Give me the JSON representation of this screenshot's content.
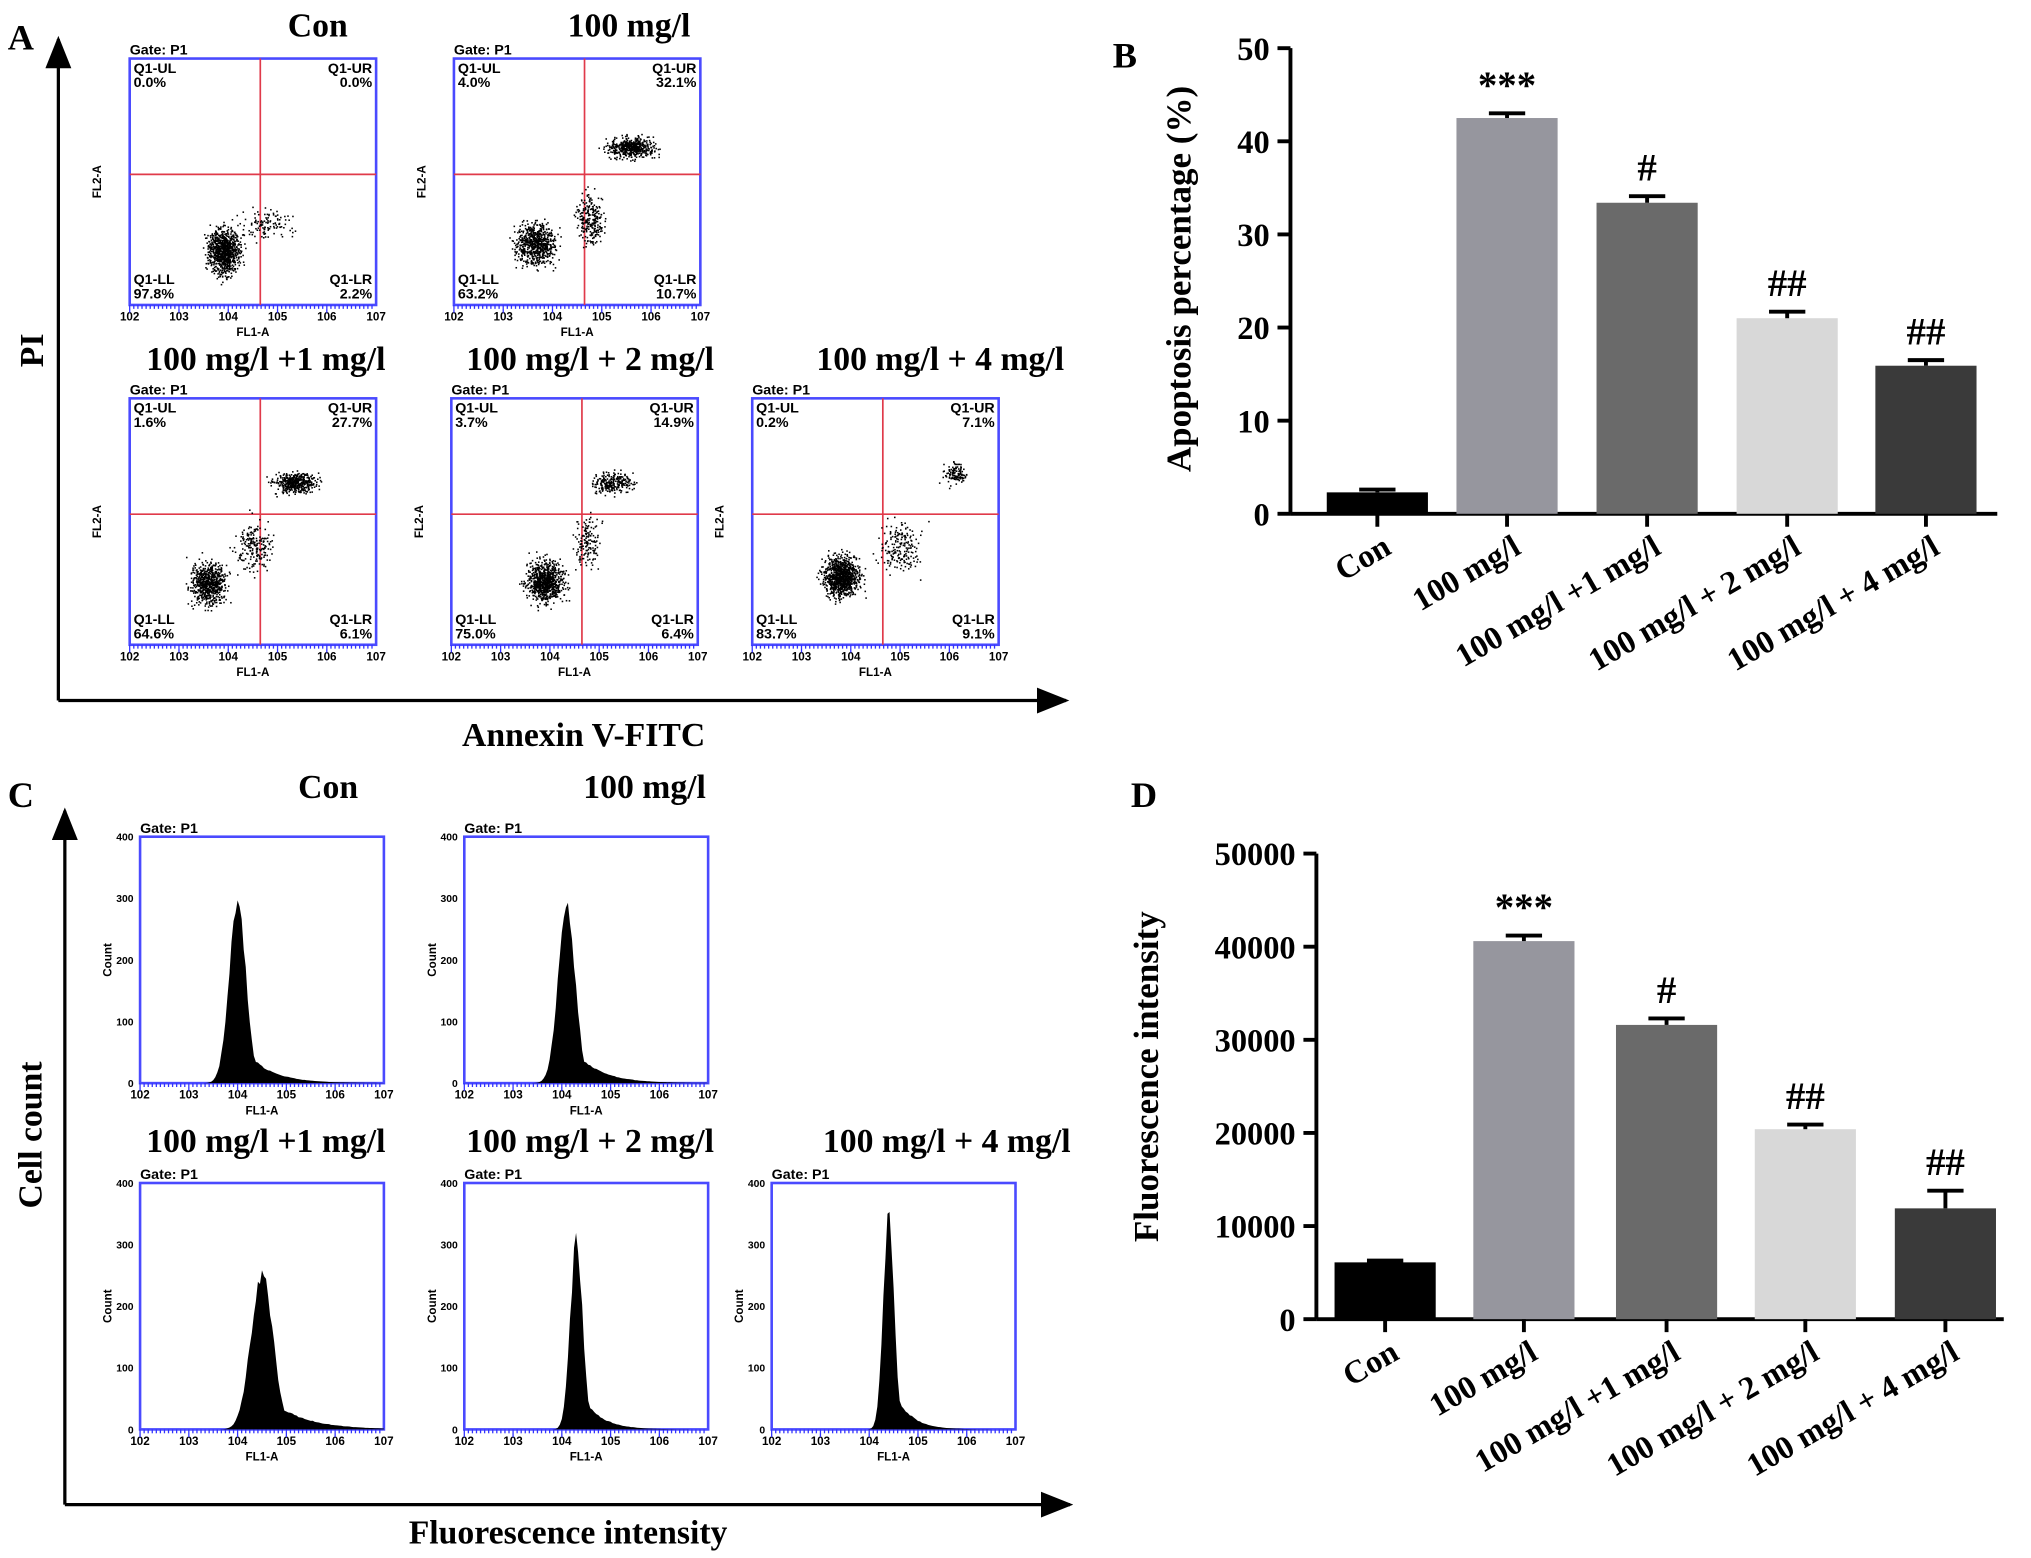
{
  "panels": {
    "A": "A",
    "B": "B",
    "C": "C",
    "D": "D"
  },
  "chart_data": [
    {
      "type": "scatter",
      "panel": "A",
      "ylabel": "PI",
      "xlabel": "Annexin  V-FITC",
      "gate": "Gate: P1",
      "x_channel": "FL1-A",
      "y_channel": "FL2-A",
      "quadrant_names": [
        "Q1-UL",
        "Q1-UR",
        "Q1-LL",
        "Q1-LR"
      ],
      "plots": [
        {
          "title": "Con",
          "UL": "0.0%",
          "UR": "0.0%",
          "LL": "97.8%",
          "LR": "2.2%"
        },
        {
          "title": "100 mg/l",
          "UL": "4.0%",
          "UR": "32.1%",
          "LL": "63.2%",
          "LR": "10.7%"
        },
        {
          "title": "100 mg/l +1 mg/l",
          "UL": "1.6%",
          "UR": "27.7%",
          "LL": "64.6%",
          "LR": "6.1%"
        },
        {
          "title": "100 mg/l + 2 mg/l",
          "UL": "3.7%",
          "UR": "14.9%",
          "LL": "75.0%",
          "LR": "6.4%"
        },
        {
          "title": "100 mg/l + 4 mg/l",
          "UL": "0.2%",
          "UR": "7.1%",
          "LL": "83.7%",
          "LR": "9.1%"
        }
      ]
    },
    {
      "type": "bar",
      "panel": "B",
      "ylabel": "Apoptosis percentage (%)",
      "ylim": [
        0,
        50
      ],
      "yticks": [
        "0",
        "10",
        "20",
        "30",
        "40",
        "50"
      ],
      "categories": [
        "Con",
        "100 mg/l",
        "100 mg/l +1 mg/l",
        "100 mg/l + 2 mg/l",
        "100 mg/l + 4 mg/l"
      ],
      "values": [
        2.3,
        42.5,
        33.4,
        21.0,
        15.9
      ],
      "errors": [
        0.3,
        0.5,
        0.7,
        0.7,
        0.6
      ],
      "annotations": [
        "",
        "***",
        "#",
        "##",
        "##"
      ],
      "colors": [
        "#000000",
        "#96969e",
        "#6a6a6a",
        "#d8d8d8",
        "#3a3a3a"
      ]
    },
    {
      "type": "area",
      "panel": "C",
      "ylabel": "Cell count",
      "xlabel": "Fluorescence intensity",
      "gate": "Gate: P1",
      "x_channel": "FL1-A",
      "y_channel": "Count",
      "yticks": [
        "0",
        "100",
        "200",
        "300",
        "400"
      ],
      "plots": [
        {
          "title": "Con",
          "peak": 300
        },
        {
          "title": "100 mg/l",
          "peak": 300
        },
        {
          "title": "100 mg/l +1 mg/l",
          "peak": 265
        },
        {
          "title": "100 mg/l + 2 mg/l",
          "peak": 320
        },
        {
          "title": "100 mg/l + 4 mg/l",
          "peak": 370
        }
      ]
    },
    {
      "type": "bar",
      "panel": "D",
      "ylabel": "Fluorescence intensity",
      "ylim": [
        0,
        50000
      ],
      "yticks": [
        "0",
        "10000",
        "20000",
        "30000",
        "40000",
        "50000"
      ],
      "categories": [
        "Con",
        "100 mg/l",
        "100 mg/l +1 mg/l",
        "100 mg/l + 2 mg/l",
        "100 mg/l + 4 mg/l"
      ],
      "values": [
        6100,
        40600,
        31600,
        20400,
        11900
      ],
      "errors": [
        200,
        600,
        700,
        500,
        1900
      ],
      "annotations": [
        "",
        "***",
        "#",
        "##",
        "##"
      ],
      "colors": [
        "#000000",
        "#96969e",
        "#6a6a6a",
        "#d8d8d8",
        "#3a3a3a"
      ]
    }
  ]
}
